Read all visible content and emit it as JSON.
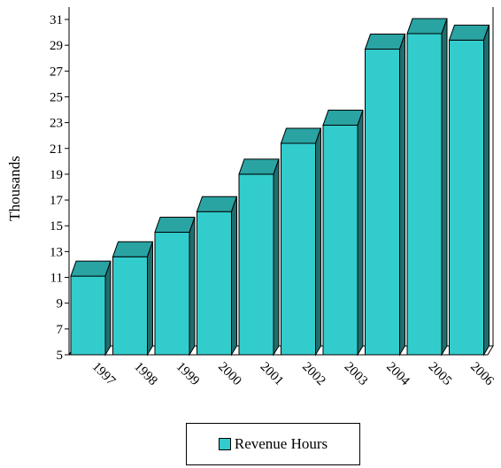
{
  "chart_data": {
    "type": "bar",
    "categories": [
      "1997",
      "1998",
      "1999",
      "2000",
      "2001",
      "2002",
      "2003",
      "2004",
      "2005",
      "2006"
    ],
    "series": [
      {
        "name": "Revenue Hours",
        "values": [
          11.1,
          12.6,
          14.5,
          16.1,
          19.0,
          21.4,
          22.8,
          28.7,
          29.9,
          29.4
        ]
      }
    ],
    "title": "",
    "xlabel": "",
    "ylabel": "Thousands",
    "ylim": [
      5,
      31
    ],
    "yticks": [
      "5",
      "7",
      "9",
      "11",
      "13",
      "15",
      "17",
      "19",
      "21",
      "23",
      "25",
      "27",
      "29",
      "31"
    ],
    "legend_position": "bottom-center",
    "grid": false,
    "style": "3d-bar"
  },
  "colors": {
    "bar_front": "#33CCCC",
    "bar_top": "#2AA3A3",
    "bar_side": "#1F6E6E",
    "axis": "#000000"
  }
}
